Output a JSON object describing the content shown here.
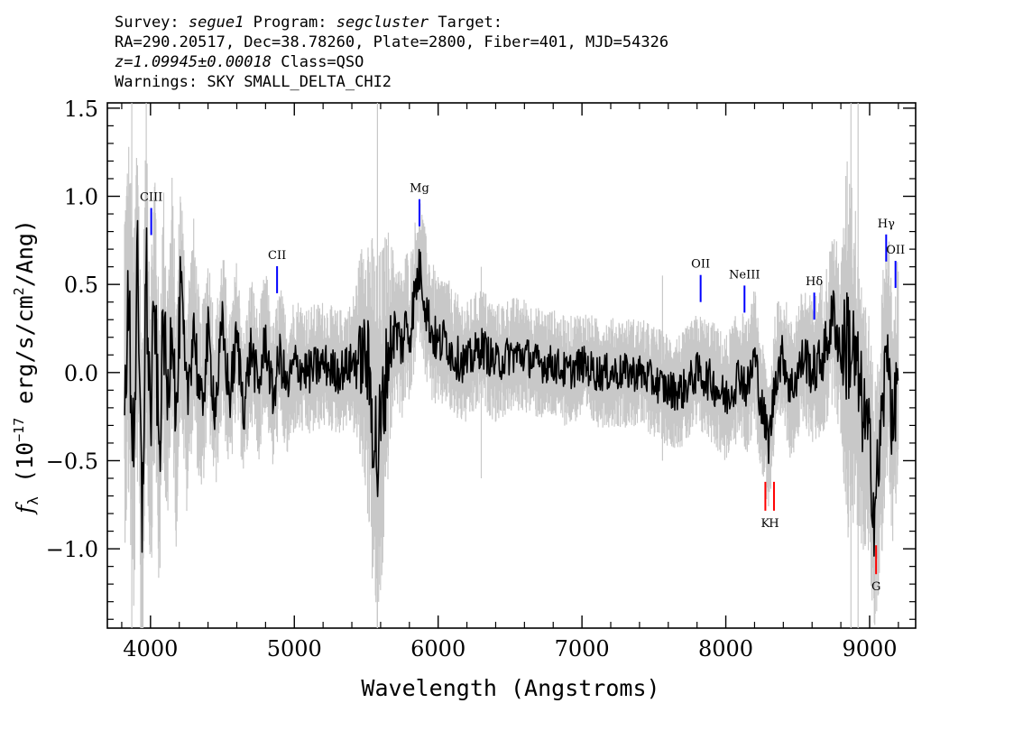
{
  "header": {
    "survey_label": "Survey:",
    "survey": "segue1",
    "program_label": "Program:",
    "program": "segcluster",
    "target_label": "Target:",
    "coords": "RA=290.20517, Dec=38.78260, Plate=2800, Fiber=401, MJD=54326",
    "redshift": "z=1.09945±0.00018",
    "class": "Class=QSO",
    "warnings": "Warnings: SKY SMALL_DELTA_CHI2"
  },
  "chart_data": {
    "type": "line",
    "xlabel": "Wavelength (Angstroms)",
    "ylabel": "f_λ (10^-17 erg/s/cm²/Ang)",
    "xlim": [
      3700,
      9320
    ],
    "ylim": [
      -1.45,
      1.53
    ],
    "x_ticks": [
      4000,
      5000,
      6000,
      7000,
      8000,
      9000
    ],
    "y_ticks": [
      -1.0,
      -0.5,
      0.0,
      0.5,
      1.0,
      1.5
    ],
    "x_tick_labels": [
      "4000",
      "5000",
      "6000",
      "7000",
      "8000",
      "9000"
    ],
    "y_tick_labels": [
      "−1.0",
      "−0.5",
      "0.0",
      "0.5",
      "1.0",
      "1.5"
    ],
    "colors": {
      "flux": "#000000",
      "error": "#c8c8c8",
      "emission": "#0000ff",
      "absorption": "#ff0000"
    },
    "series": [
      {
        "role": "smoothed-flux",
        "x": [
          3820,
          3850,
          3880,
          3910,
          3940,
          3970,
          4000,
          4030,
          4060,
          4090,
          4120,
          4150,
          4180,
          4210,
          4250,
          4300,
          4350,
          4400,
          4450,
          4500,
          4550,
          4600,
          4650,
          4700,
          4750,
          4800,
          4850,
          4900,
          4950,
          5000,
          5100,
          5200,
          5300,
          5400,
          5500,
          5580,
          5650,
          5700,
          5750,
          5780,
          5800,
          5830,
          5860,
          5880,
          5900,
          5920,
          5950,
          6000,
          6050,
          6100,
          6200,
          6300,
          6400,
          6500,
          6600,
          6700,
          6800,
          6900,
          7000,
          7100,
          7200,
          7300,
          7400,
          7500,
          7600,
          7700,
          7800,
          7900,
          8000,
          8100,
          8150,
          8200,
          8250,
          8300,
          8350,
          8400,
          8450,
          8500,
          8550,
          8600,
          8650,
          8700,
          8750,
          8800,
          8850,
          8900,
          8950,
          9000,
          9030,
          9060,
          9100,
          9130,
          9160,
          9200
        ],
        "values": [
          0.05,
          0.3,
          -0.4,
          0.5,
          -0.9,
          0.6,
          -0.3,
          0.4,
          -0.5,
          0.3,
          -0.2,
          0.4,
          -0.3,
          0.5,
          -0.2,
          0.3,
          -0.25,
          0.2,
          -0.2,
          0.25,
          -0.15,
          0.2,
          -0.2,
          0.15,
          -0.1,
          0.2,
          -0.15,
          0.1,
          -0.1,
          0.05,
          0.0,
          0.05,
          0.0,
          0.05,
          0.1,
          -0.5,
          0.1,
          0.25,
          0.15,
          0.3,
          0.2,
          0.4,
          0.55,
          0.6,
          0.45,
          0.35,
          0.25,
          0.15,
          0.2,
          0.1,
          0.05,
          0.15,
          0.05,
          0.1,
          0.1,
          0.05,
          0.05,
          0.0,
          0.05,
          0.0,
          0.0,
          0.0,
          0.0,
          -0.05,
          -0.1,
          -0.1,
          0.0,
          -0.05,
          -0.15,
          0.0,
          -0.1,
          0.1,
          -0.2,
          -0.4,
          0.0,
          0.1,
          -0.1,
          0.0,
          0.1,
          0.0,
          0.05,
          0.15,
          0.35,
          0.1,
          0.2,
          0.05,
          -0.2,
          -0.4,
          -0.8,
          -0.55,
          -0.1,
          0.2,
          -0.4,
          0.1
        ]
      },
      {
        "role": "error-envelope",
        "x": [
          3820,
          3900,
          4000,
          4100,
          4200,
          4300,
          4400,
          4500,
          4600,
          4700,
          4800,
          4900,
          5000,
          5200,
          5400,
          5580,
          5700,
          5800,
          5900,
          6000,
          6200,
          6400,
          6600,
          6800,
          7000,
          7200,
          7400,
          7600,
          7800,
          8000,
          8200,
          8400,
          8600,
          8800,
          8850,
          8900,
          9000,
          9100,
          9200
        ],
        "values": [
          0.8,
          0.9,
          0.75,
          0.6,
          0.55,
          0.45,
          0.4,
          0.38,
          0.35,
          0.33,
          0.32,
          0.32,
          0.3,
          0.28,
          0.27,
          0.9,
          0.32,
          0.33,
          0.32,
          0.3,
          0.27,
          0.26,
          0.25,
          0.24,
          0.24,
          0.24,
          0.24,
          0.25,
          0.26,
          0.28,
          0.3,
          0.3,
          0.32,
          0.4,
          0.9,
          0.7,
          0.55,
          0.6,
          0.5
        ]
      }
    ],
    "emission_lines": [
      {
        "label": "CIII",
        "x": 4005,
        "y": 0.78
      },
      {
        "label": "CII",
        "x": 4880,
        "y": 0.45
      },
      {
        "label": "Mg",
        "x": 5870,
        "y": 0.83
      },
      {
        "label": "OII",
        "x": 7825,
        "y": 0.4
      },
      {
        "label": "NeIII",
        "x": 8130,
        "y": 0.34
      },
      {
        "label": "Hδ",
        "x": 8615,
        "y": 0.3
      },
      {
        "label": "Hγ",
        "x": 9115,
        "y": 0.63
      },
      {
        "label": "OII",
        "x": 9180,
        "y": 0.48
      }
    ],
    "absorption_lines": [
      {
        "label": "K",
        "x": 8275,
        "y": -0.62
      },
      {
        "label": "H",
        "x": 8335,
        "y": -0.62
      },
      {
        "label": "G",
        "x": 9045,
        "y": -0.98
      }
    ]
  }
}
